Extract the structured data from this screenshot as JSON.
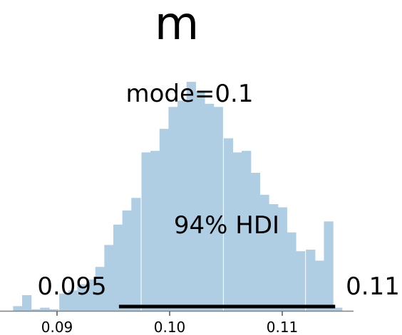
{
  "chart_data": {
    "type": "bar",
    "title": "m",
    "xlabel": "",
    "ylabel": "",
    "xlim": [
      0.0846,
      0.1164
    ],
    "bar_color": "#b0cee3",
    "hdi_line_color": "#000000",
    "axis_color": "#808080",
    "grid": false,
    "legend": "none",
    "annotations": {
      "mode_label": "mode=0.1",
      "hdi_label": "94% HDI",
      "hdi_low_label": "0.095",
      "hdi_high_label": "0.11"
    },
    "hdi": [
      0.0955,
      0.1147
    ],
    "x_ticks": [
      {
        "value": 0.09,
        "label": "0.09"
      },
      {
        "value": 0.1,
        "label": "0.10"
      },
      {
        "value": 0.11,
        "label": "0.11"
      }
    ],
    "bin_width": 0.000813,
    "bin_starts": [
      0.0861,
      0.0869,
      0.0877,
      0.0885,
      0.0893,
      0.0902,
      0.091,
      0.0918,
      0.0926,
      0.0934,
      0.0942,
      0.095,
      0.0958,
      0.0966,
      0.0975,
      0.0983,
      0.0991,
      0.0999,
      0.1007,
      0.1015,
      0.1023,
      0.1031,
      0.1039,
      0.1048,
      0.1056,
      0.1064,
      0.1072,
      0.108,
      0.1088,
      0.1096,
      0.1104,
      0.1112,
      0.1121,
      0.1129,
      0.1137,
      0.1145
    ],
    "values": [
      1.5,
      5,
      0.5,
      1,
      0.5,
      5.5,
      6.5,
      8.5,
      10,
      14,
      21,
      27.5,
      32,
      36,
      50.5,
      51,
      58,
      65,
      67,
      73,
      70,
      66,
      65,
      55,
      50.5,
      51,
      44,
      37,
      34,
      33,
      25,
      19,
      19.5,
      16,
      28.5,
      1
    ]
  }
}
